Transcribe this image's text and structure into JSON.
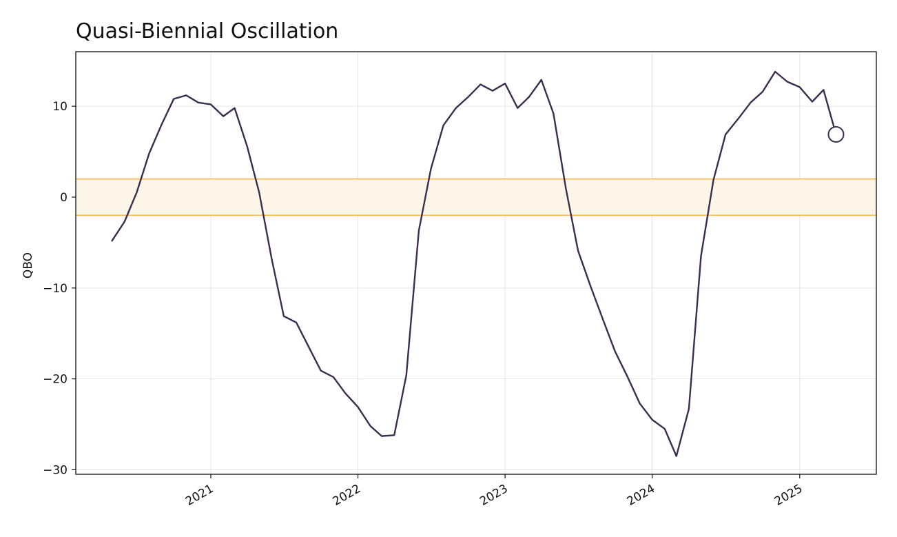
{
  "chart_data": {
    "type": "line",
    "title": "Quasi-Biennial Oscillation",
    "xlabel": "",
    "ylabel": "QBO",
    "x_axis_type": "date",
    "xlim": [
      "2020-02-01",
      "2025-07-10"
    ],
    "ylim": [
      -30.5,
      16
    ],
    "x_ticks": [
      {
        "date": "2021-01-01",
        "label": "2021"
      },
      {
        "date": "2022-01-01",
        "label": "2022"
      },
      {
        "date": "2023-01-01",
        "label": "2023"
      },
      {
        "date": "2024-01-01",
        "label": "2024"
      },
      {
        "date": "2025-01-01",
        "label": "2025"
      }
    ],
    "y_ticks": [
      {
        "value": 10,
        "label": "10"
      },
      {
        "value": 0,
        "label": "0"
      },
      {
        "value": -10,
        "label": "−10"
      },
      {
        "value": -20,
        "label": "−20"
      },
      {
        "value": -30,
        "label": "−30"
      }
    ],
    "grid": true,
    "neutral_band": {
      "lower": -2,
      "upper": 2,
      "fill_color": "#fdf5e8",
      "line_color": "#f5b94d"
    },
    "line_color": "#3b2d4d",
    "last_point_marker": "hollow circle",
    "series": [
      {
        "dates": [
          "2020-05-01",
          "2020-06-01",
          "2020-07-01",
          "2020-08-01",
          "2020-09-01",
          "2020-10-01",
          "2020-11-01",
          "2020-12-01",
          "2021-01-01",
          "2021-02-01",
          "2021-03-01",
          "2021-04-01",
          "2021-05-01",
          "2021-06-01",
          "2021-07-01",
          "2021-08-01",
          "2021-09-01",
          "2021-10-01",
          "2021-11-01",
          "2021-12-01",
          "2022-01-01",
          "2022-02-01",
          "2022-03-01",
          "2022-04-01",
          "2022-05-01",
          "2022-06-01",
          "2022-07-01",
          "2022-08-01",
          "2022-09-01",
          "2022-10-01",
          "2022-11-01",
          "2022-12-01",
          "2023-01-01",
          "2023-02-01",
          "2023-03-01",
          "2023-04-01",
          "2023-05-01",
          "2023-06-01",
          "2023-07-01",
          "2023-08-01",
          "2023-09-01",
          "2023-10-01",
          "2023-11-01",
          "2023-12-01",
          "2024-01-01",
          "2024-02-01",
          "2024-03-01",
          "2024-04-01",
          "2024-05-01",
          "2024-06-01",
          "2024-07-01",
          "2024-08-01",
          "2024-09-01",
          "2024-10-01",
          "2024-11-01",
          "2024-12-01",
          "2025-01-01",
          "2025-02-01",
          "2025-03-01",
          "2025-04-01"
        ],
        "values": [
          -4.8,
          -2.7,
          0.5,
          4.8,
          8.0,
          10.8,
          11.2,
          10.4,
          10.2,
          8.9,
          9.8,
          5.6,
          0.5,
          -6.8,
          -13.1,
          -13.8,
          -16.5,
          -19.1,
          -19.8,
          -21.6,
          -23.1,
          -25.2,
          -26.3,
          -26.2,
          -19.6,
          -3.7,
          3.1,
          7.9,
          9.8,
          11.0,
          12.4,
          11.7,
          12.5,
          9.8,
          11.0,
          12.9,
          9.2,
          0.9,
          -5.9,
          -9.8,
          -13.5,
          -17.0,
          -19.8,
          -22.7,
          -24.5,
          -25.5,
          -28.5,
          -23.3,
          -6.5,
          1.9,
          6.9,
          8.6,
          10.4,
          11.6,
          13.8,
          12.7,
          12.1,
          10.5,
          11.8,
          6.9
        ]
      }
    ]
  }
}
